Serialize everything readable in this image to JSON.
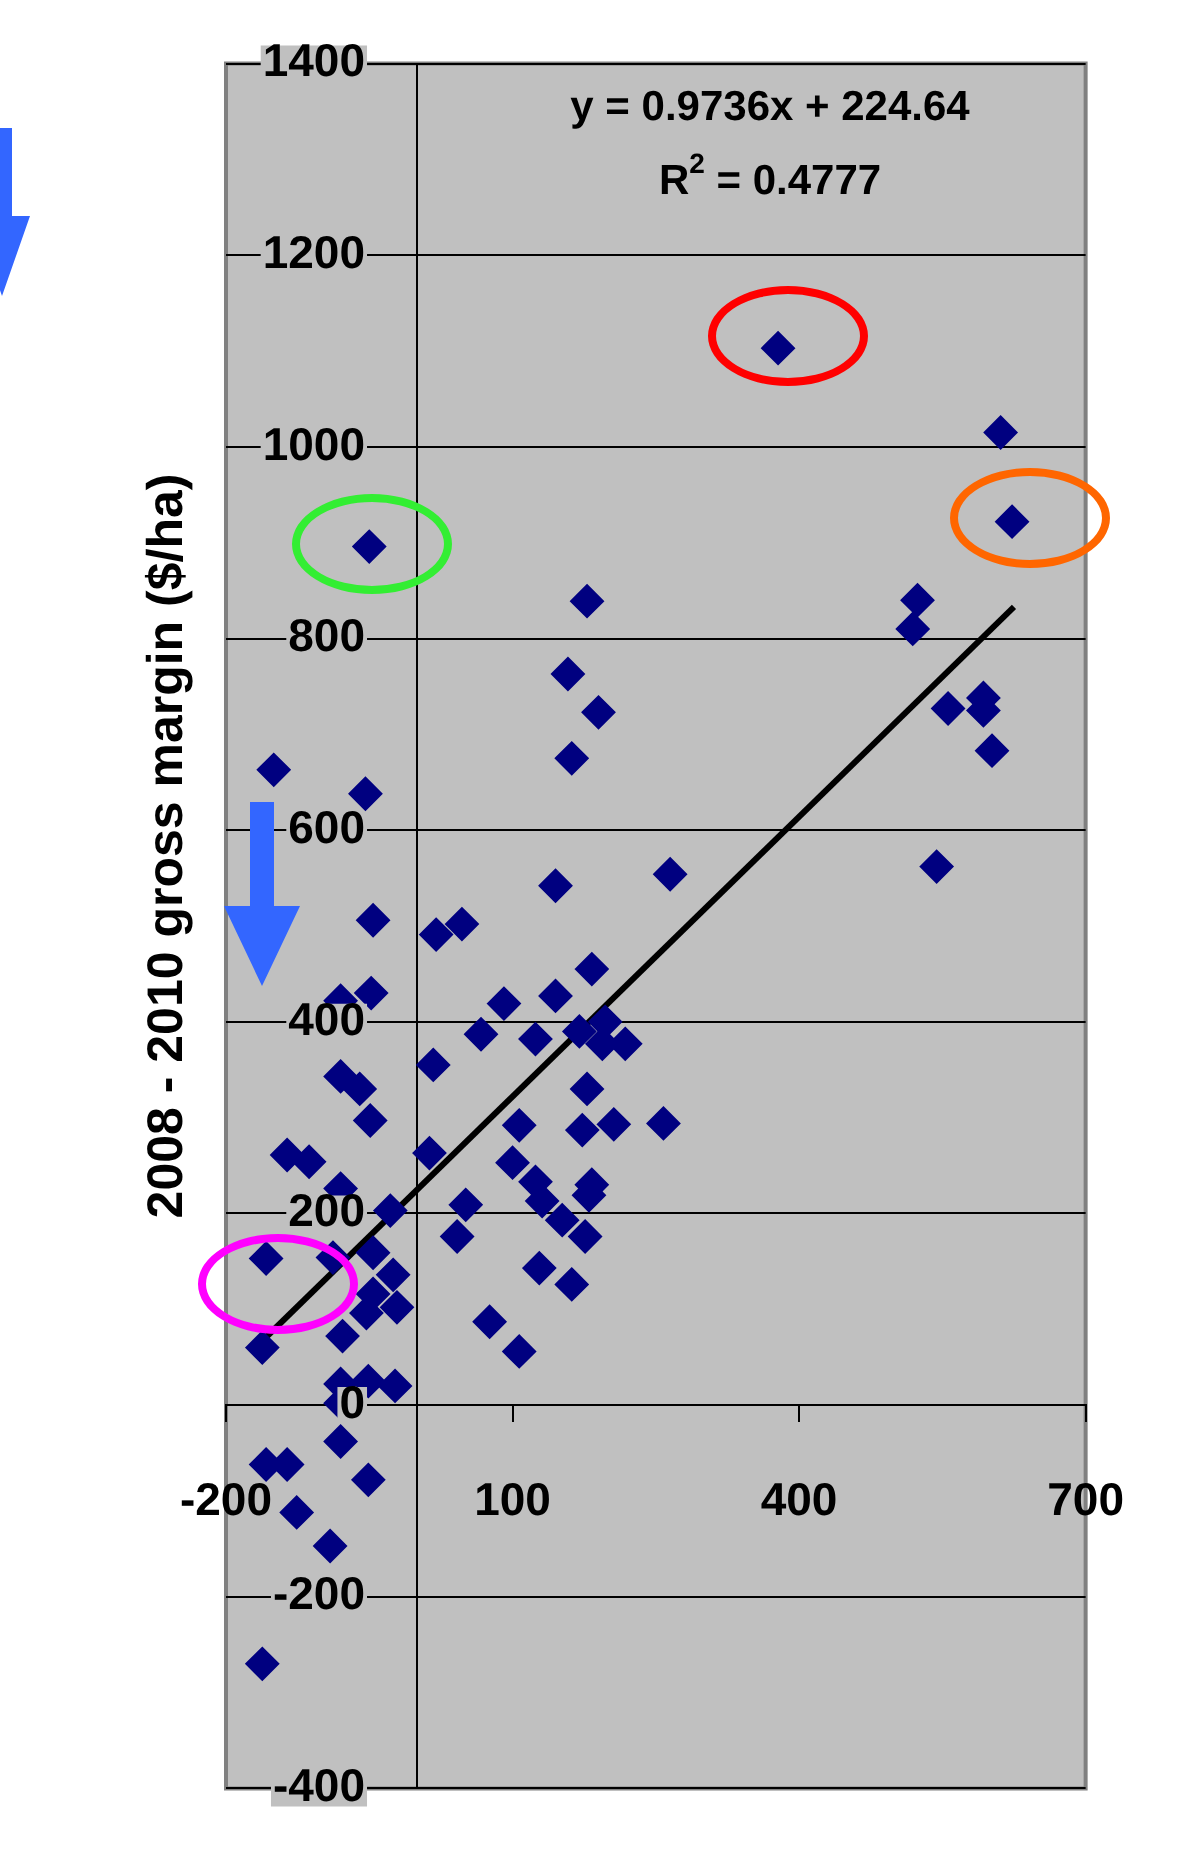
{
  "chart_data": {
    "type": "scatter",
    "ylabel": "2008 - 2010 gross margin ($/ha)",
    "annotations": [
      "y = 0.9736x + 224.64",
      "R$^{2}$ = 0.4777"
    ],
    "series": [
      {
        "type": "scatter",
        "color": "#000080",
        "marker": "diamond",
        "x": [
          -50,
          178,
          378,
          611,
          623,
          524,
          519,
          158,
          190,
          162,
          -150,
          -54,
          145,
          265,
          -46,
          20,
          47,
          183,
          145,
          91,
          -48,
          -80,
          67,
          124,
          170,
          197,
          194,
          218,
          17,
          -80,
          -60,
          -49,
          178,
          107,
          173,
          206,
          258,
          -136,
          -113,
          13,
          100,
          183,
          124,
          -80,
          -28,
          51,
          42,
          131,
          180,
          152,
          176,
          128,
          162,
          -158,
          -88,
          -46,
          -25,
          -46,
          -21,
          -53,
          -78,
          -162,
          76,
          107,
          -80,
          -51,
          -23,
          -80,
          -80,
          -158,
          -136,
          -51,
          -126,
          -91,
          -162,
          556,
          593,
          593,
          602,
          544
        ],
        "values": [
          896,
          839,
          1103,
          1015,
          922,
          840,
          810,
          763,
          723,
          675,
          663,
          638,
          542,
          554,
          506,
          491,
          502,
          455,
          427,
          419,
          430,
          422,
          387,
          382,
          390,
          400,
          377,
          377,
          355,
          343,
          330,
          297,
          330,
          292,
          287,
          293,
          294,
          261,
          254,
          263,
          253,
          230,
          233,
          226,
          203,
          209,
          176,
          213,
          219,
          193,
          176,
          143,
          126,
          153,
          154,
          159,
          136,
          116,
          102,
          96,
          72,
          60,
          87,
          56,
          22,
          25,
          20,
          2,
          -38,
          -62,
          -62,
          -78,
          -112,
          -147,
          -270,
          727,
          738,
          725,
          683,
          562
        ]
      },
      {
        "type": "line",
        "color": "#000000",
        "marker": "none",
        "line_style": "solid",
        "x": [
          -160,
          625
        ],
        "values": [
          69,
          833
        ]
      }
    ],
    "xlim": [
      -200,
      700
    ],
    "xticks": [
      -200,
      100,
      400,
      700
    ],
    "ylim": [
      -400,
      1400
    ],
    "yticks": [
      -400,
      -200,
      0,
      200,
      400,
      600,
      800,
      1000,
      1200,
      1400
    ],
    "grid": "y",
    "legend": false
  }
}
